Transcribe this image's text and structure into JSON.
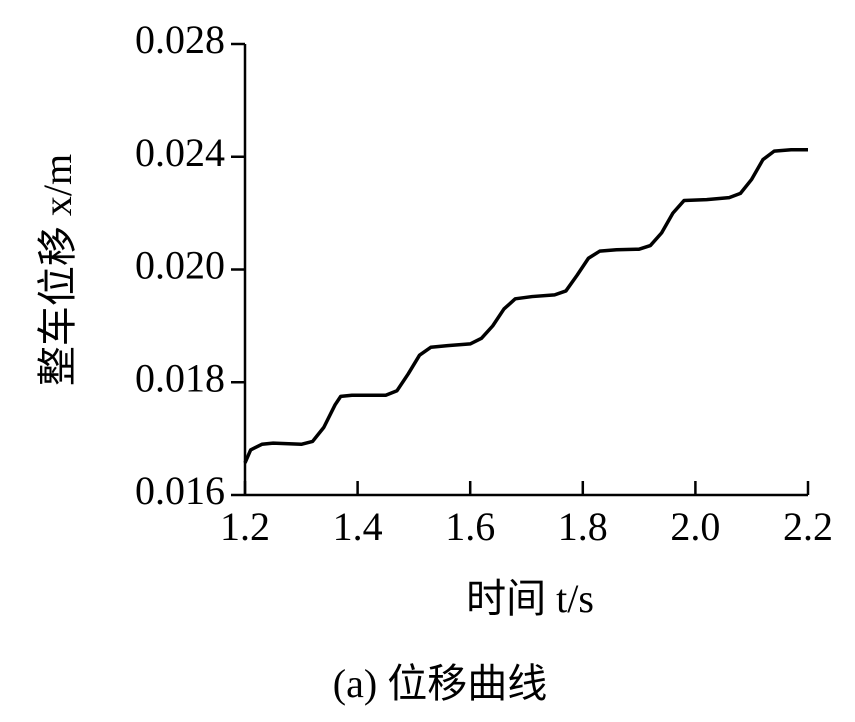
{
  "chart_data": {
    "type": "line",
    "xlabel": "时间 t/s",
    "ylabel": "整车位移 x/m",
    "caption": "(a) 位移曲线",
    "x": [
      1.2,
      1.21,
      1.23,
      1.25,
      1.3,
      1.32,
      1.34,
      1.36,
      1.37,
      1.39,
      1.45,
      1.47,
      1.49,
      1.51,
      1.53,
      1.56,
      1.6,
      1.62,
      1.64,
      1.66,
      1.68,
      1.71,
      1.75,
      1.77,
      1.79,
      1.81,
      1.83,
      1.86,
      1.9,
      1.92,
      1.94,
      1.96,
      1.98,
      2.02,
      2.06,
      2.08,
      2.1,
      2.12,
      2.14,
      2.17,
      2.2
    ],
    "series": [
      {
        "color": "#000000",
        "values": [
          0.01657,
          0.0168,
          0.0169,
          0.01692,
          0.0169,
          0.01695,
          0.0172,
          0.0176,
          0.01775,
          0.01777,
          0.01777,
          0.01785,
          0.01815,
          0.01848,
          0.01862,
          0.01865,
          0.01868,
          0.01878,
          0.019,
          0.0193,
          0.01948,
          0.01952,
          0.01955,
          0.01962,
          0.0199,
          0.0204,
          0.02065,
          0.0207,
          0.02072,
          0.02085,
          0.0213,
          0.022,
          0.02245,
          0.02248,
          0.02255,
          0.0227,
          0.0232,
          0.0239,
          0.0242,
          0.02425,
          0.02425
        ]
      }
    ],
    "xlim": [
      1.2,
      2.2
    ],
    "xticks": [
      {
        "value": 1.2,
        "label": "1.2"
      },
      1.4,
      1.6,
      1.8,
      {
        "value": 2.0,
        "label": "2.0"
      },
      {
        "value": 2.2,
        "label": "2.2"
      }
    ],
    "ylim": [
      0.016,
      0.028
    ],
    "yticks": [
      0.016,
      0.018,
      {
        "value": 0.02,
        "label": "0.020"
      },
      0.024,
      0.028
    ]
  }
}
